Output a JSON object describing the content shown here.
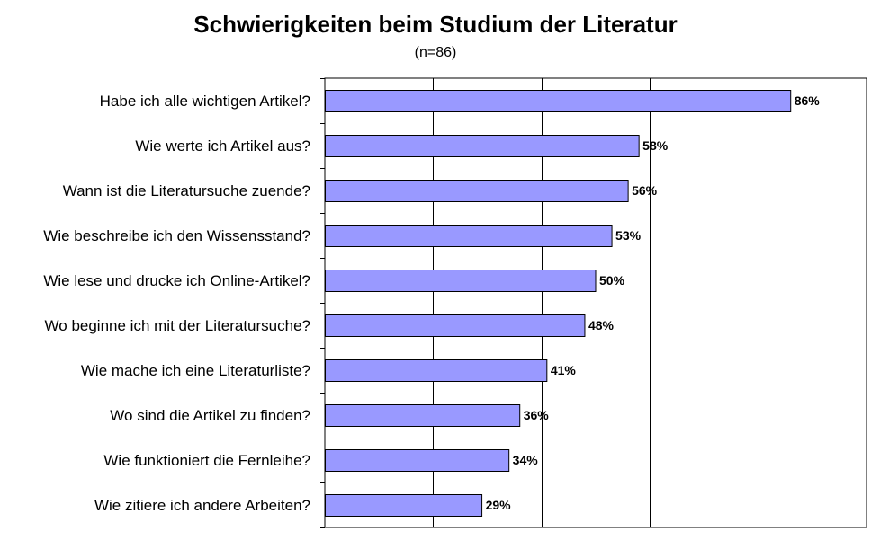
{
  "chart_data": {
    "type": "bar",
    "orientation": "horizontal",
    "title": "Schwierigkeiten beim Studium der Literatur",
    "subtitle": "(n=86)",
    "categories": [
      "Habe ich alle wichtigen Artikel?",
      "Wie werte ich Artikel aus?",
      "Wann ist die Literatursuche zuende?",
      "Wie beschreibe ich den Wissensstand?",
      "Wie lese und drucke ich Online-Artikel?",
      "Wo beginne ich mit der Literatursuche?",
      "Wie mache ich eine Literaturliste?",
      "Wo sind die Artikel zu finden?",
      "Wie funktioniert die Fernleihe?",
      "Wie zitiere ich andere Arbeiten?"
    ],
    "values": [
      86,
      58,
      56,
      53,
      50,
      48,
      41,
      36,
      34,
      29
    ],
    "data_labels": [
      "86%",
      "58%",
      "56%",
      "53%",
      "50%",
      "48%",
      "41%",
      "36%",
      "34%",
      "29%"
    ],
    "xlim": [
      0,
      100
    ],
    "xlabel": "",
    "ylabel": "",
    "grid": true,
    "legend": "none",
    "bar_color": "#9999ff",
    "bar_border_color": "#000000"
  }
}
